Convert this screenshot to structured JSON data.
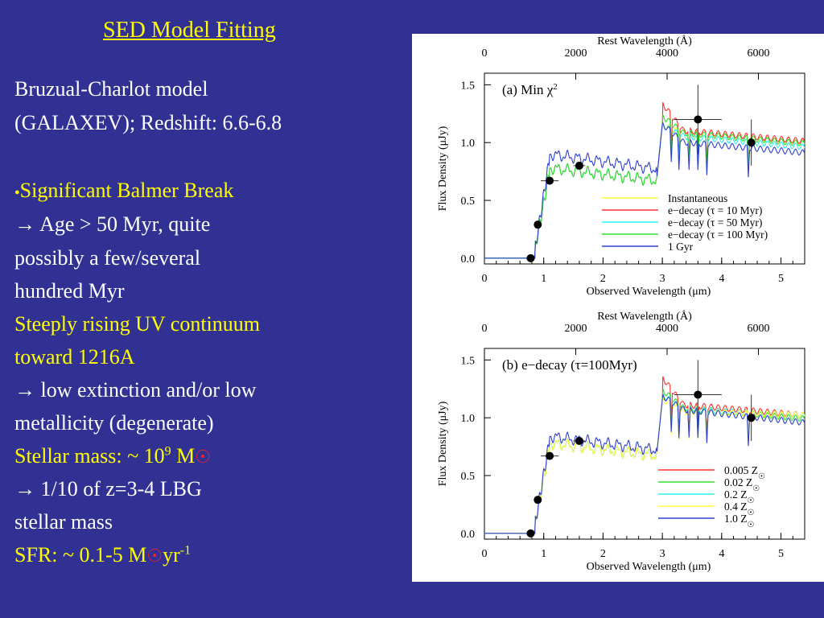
{
  "slide": {
    "title": "SED Model Fitting",
    "lines": [
      {
        "text": " Bruzual-Charlot model",
        "color": "white"
      },
      {
        "text": "(GALAXEV); Redshift: 6.6-6.8",
        "color": "white"
      },
      {
        "text": "Significant Balmer Break",
        "color": "yellow",
        "bullet": "●"
      },
      {
        "text": "        → Age > 50 Myr,  quite",
        "color": "white"
      },
      {
        "text": "               possibly a few/several",
        "color": "white"
      },
      {
        "text": "hundred     Myr",
        "color": "white"
      },
      {
        "text": "Steeply rising UV continuum",
        "color": "yellow"
      },
      {
        "text": "toward 1216A",
        "color": "yellow"
      },
      {
        "text": "        →  low extinction and/or low",
        "color": "white"
      },
      {
        "text": "metallicity (degenerate)",
        "color": "white"
      },
      {
        "text": " Stellar mass: ~ 10",
        "sup": "9",
        "tail": " M",
        "sun": "☉",
        "color": "yellow"
      },
      {
        "text": "                     → 1/10 of z=3-4 LBG",
        "color": "white"
      },
      {
        "text": "stellar  mass",
        "color": "white"
      },
      {
        "text": "SFR: ~ 0.1-5 M",
        "sun": "☉",
        "tail2": "yr",
        "sup2": "-1",
        "color": "yellow"
      }
    ]
  },
  "chart_data": [
    {
      "type": "line",
      "panel_label": "(a)  Min χ",
      "panel_sup": "2",
      "xlabel": "Observed Wavelength (μm)",
      "ylabel": "Flux Density (μJy)",
      "top_xlabel": "Rest Wavelength (Å)",
      "xlim": [
        0,
        5.4
      ],
      "ylim": [
        -0.05,
        1.6
      ],
      "x_ticks": [
        0,
        1,
        2,
        3,
        4,
        5
      ],
      "y_ticks": [
        0.0,
        0.5,
        1.0,
        1.5
      ],
      "top_ticks": [
        0,
        2000,
        4000,
        6000
      ],
      "legend_position": "lower-right",
      "series": [
        {
          "name": "Instantaneous",
          "color": "#ffff40",
          "offset": 0.0,
          "spike": 0.05,
          "tilt": 0.0
        },
        {
          "name": "e−decay (τ = 10 Myr)",
          "color": "#ff3030",
          "offset": 0.02,
          "spike": 0.22,
          "tilt": 0.0
        },
        {
          "name": "e−decay (τ = 50 Myr)",
          "color": "#30f0f0",
          "offset": -0.03,
          "spike": 0.08,
          "tilt": 0.0
        },
        {
          "name": "e−decay (τ = 100 Myr)",
          "color": "#30e030",
          "offset": 0.0,
          "spike": 0.13,
          "tilt": 0.0
        },
        {
          "name": "1 Gyr",
          "color": "#3040d0",
          "offset": -0.08,
          "spike": 0.14,
          "tilt": 0.0,
          "uvboost": 0.12
        }
      ],
      "points": [
        {
          "x": 0.78,
          "y": 0.0,
          "xerr": 0.0,
          "yerr": 0.0
        },
        {
          "x": 0.9,
          "y": 0.29,
          "xerr": 0.0,
          "yerr": 0.0
        },
        {
          "x": 1.1,
          "y": 0.67,
          "xerr": 0.15,
          "yerr": 0.0
        },
        {
          "x": 1.6,
          "y": 0.8,
          "xerr": 0.1,
          "yerr": 0.0
        },
        {
          "x": 3.6,
          "y": 1.2,
          "xerr": 0.4,
          "yerr": 0.3
        },
        {
          "x": 4.5,
          "y": 1.0,
          "xerr": 0.0,
          "yerr": 0.2
        }
      ]
    },
    {
      "type": "line",
      "panel_label": "(b)  e−decay (τ=100Myr)",
      "xlabel": "Observed Wavelength (μm)",
      "ylabel": "Flux Density (μJy)",
      "top_xlabel": "Rest Wavelength (Å)",
      "xlim": [
        0,
        5.4
      ],
      "ylim": [
        -0.05,
        1.6
      ],
      "x_ticks": [
        0,
        1,
        2,
        3,
        4,
        5
      ],
      "y_ticks": [
        0.0,
        0.5,
        1.0,
        1.5
      ],
      "top_ticks": [
        0,
        2000,
        4000,
        6000
      ],
      "legend_position": "lower-right",
      "series": [
        {
          "name": "0.005 Z",
          "sym": "☉",
          "color": "#ff3030",
          "offset": 0.03,
          "spike": 0.22,
          "tilt": 0.0
        },
        {
          "name": "0.02 Z",
          "sym": "☉",
          "color": "#30e030",
          "offset": 0.0,
          "spike": 0.14,
          "tilt": 0.0
        },
        {
          "name": "0.2 Z",
          "sym": "☉",
          "color": "#30f0f0",
          "offset": -0.02,
          "spike": 0.12,
          "tilt": -0.02
        },
        {
          "name": "0.4 Z",
          "sym": "☉",
          "color": "#ffff40",
          "offset": -0.04,
          "spike": 0.1,
          "tilt": -0.03
        },
        {
          "name": "1.0 Z",
          "sym": "☉",
          "color": "#3040d0",
          "offset": -0.01,
          "spike": 0.1,
          "tilt": 0.01,
          "uvboost": 0.06
        }
      ],
      "points": [
        {
          "x": 0.78,
          "y": 0.0,
          "xerr": 0.0,
          "yerr": 0.0
        },
        {
          "x": 0.9,
          "y": 0.29,
          "xerr": 0.0,
          "yerr": 0.0
        },
        {
          "x": 1.1,
          "y": 0.67,
          "xerr": 0.15,
          "yerr": 0.0
        },
        {
          "x": 1.6,
          "y": 0.8,
          "xerr": 0.1,
          "yerr": 0.0
        },
        {
          "x": 3.6,
          "y": 1.2,
          "xerr": 0.4,
          "yerr": 0.3
        },
        {
          "x": 4.5,
          "y": 1.0,
          "xerr": 0.0,
          "yerr": 0.2
        }
      ]
    }
  ]
}
